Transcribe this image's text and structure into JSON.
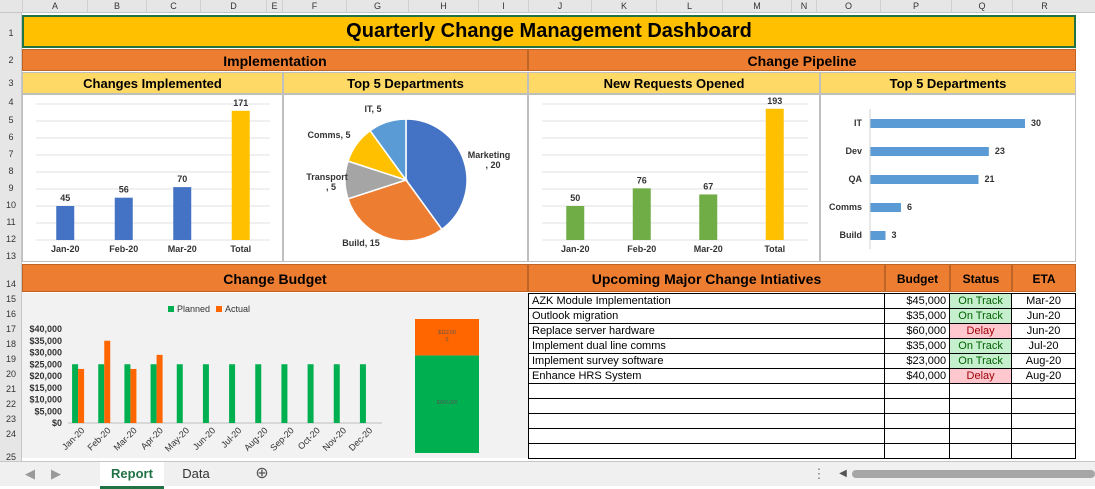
{
  "columns": [
    "A",
    "B",
    "C",
    "D",
    "E",
    "F",
    "G",
    "H",
    "I",
    "J",
    "K",
    "L",
    "M",
    "N",
    "O",
    "P",
    "Q",
    "R"
  ],
  "rows": [
    "1",
    "2",
    "3",
    "4",
    "5",
    "6",
    "7",
    "8",
    "9",
    "10",
    "11",
    "12",
    "13",
    "14",
    "15",
    "16",
    "17",
    "18",
    "19",
    "20",
    "21",
    "22",
    "23",
    "24",
    "25"
  ],
  "dashboard": {
    "title": "Quarterly Change Management Dashboard",
    "implementation_header": "Implementation",
    "pipeline_header": "Change Pipeline",
    "changes_implemented_title": "Changes Implemented",
    "impl_top5_title": "Top 5 Departments",
    "new_requests_title": "New Requests Opened",
    "pipe_top5_title": "Top 5 Departments",
    "budget_header": "Change Budget",
    "initiatives_header": "Upcoming Major Change Intiatives",
    "col_budget": "Budget",
    "col_status": "Status",
    "col_eta": "ETA"
  },
  "initiatives": [
    {
      "name": "AZK Module Implementation",
      "budget": "$45,000",
      "status": "On Track",
      "eta": "Mar-20"
    },
    {
      "name": "Outlook migration",
      "budget": "$35,000",
      "status": "On Track",
      "eta": "Jun-20"
    },
    {
      "name": "Replace server hardware",
      "budget": "$60,000",
      "status": "Delay",
      "eta": "Jun-20"
    },
    {
      "name": "Implement dual line comms",
      "budget": "$35,000",
      "status": "On Track",
      "eta": "Jul-20"
    },
    {
      "name": "Implement survey software",
      "budget": "$23,000",
      "status": "On Track",
      "eta": "Aug-20"
    },
    {
      "name": "Enhance HRS System",
      "budget": "$40,000",
      "status": "Delay",
      "eta": "Aug-20"
    }
  ],
  "status_colors": {
    "on_track_bg": "#c6efce",
    "on_track_fg": "#006100",
    "delay_bg": "#ffc7ce",
    "delay_fg": "#9c0006"
  },
  "sheet_tabs": [
    "Report",
    "Data"
  ],
  "active_tab": "Report",
  "chart_data": [
    {
      "type": "bar",
      "categories": [
        "Jan-20",
        "Feb-20",
        "Mar-20",
        "Total"
      ],
      "values": [
        45,
        56,
        70,
        171
      ],
      "colors": [
        "#4472c4",
        "#4472c4",
        "#4472c4",
        "#ffc000"
      ],
      "title": "Changes Implemented"
    },
    {
      "type": "pie",
      "labels": [
        "Marketing, 20",
        "Build, 15",
        "Transport, 5",
        "Comms, 5",
        "IT, 5"
      ],
      "values": [
        20,
        15,
        5,
        5,
        5
      ],
      "colors": [
        "#4472c4",
        "#ed7d31",
        "#a5a5a5",
        "#ffc000",
        "#5b9bd5"
      ],
      "title": "Top 5 Departments"
    },
    {
      "type": "bar",
      "categories": [
        "Jan-20",
        "Feb-20",
        "Mar-20",
        "Total"
      ],
      "values": [
        50,
        76,
        67,
        193
      ],
      "colors": [
        "#70ad47",
        "#70ad47",
        "#70ad47",
        "#ffc000"
      ],
      "title": "New Requests Opened"
    },
    {
      "type": "bar",
      "orientation": "horizontal",
      "categories": [
        "IT",
        "Dev",
        "QA",
        "Comms",
        "Build"
      ],
      "values": [
        30,
        23,
        21,
        6,
        3
      ],
      "colors": [
        "#5b9bd5"
      ],
      "title": "Top 5 Departments"
    },
    {
      "type": "bar",
      "categories": [
        "Jan-20",
        "Feb-20",
        "Mar-20",
        "Apr-20",
        "May-20",
        "Jun-20",
        "Jul-20",
        "Aug-20",
        "Sep-20",
        "Oct-20",
        "Nov-20",
        "Dec-20"
      ],
      "series": [
        {
          "name": "Planned",
          "values": [
            25000,
            25000,
            25000,
            25000,
            25000,
            25000,
            25000,
            25000,
            25000,
            25000,
            25000,
            25000
          ],
          "color": "#00b050"
        },
        {
          "name": "Actual",
          "values": [
            23000,
            35000,
            23000,
            29000,
            null,
            null,
            null,
            null,
            null,
            null,
            null,
            null
          ],
          "color": "#ff6600"
        }
      ],
      "ylim": [
        0,
        40000
      ],
      "yticks": [
        "$0",
        "$5,000",
        "$10,000",
        "$15,000",
        "$20,000",
        "$25,000",
        "$30,000",
        "$35,000",
        "$40,000"
      ],
      "legend": "top-center"
    },
    {
      "type": "bar",
      "orientation": "stacked",
      "categories": [
        "Budget"
      ],
      "series": [
        {
          "name": "",
          "values": [
            300000
          ],
          "label": "$300,000",
          "color": "#00b050"
        },
        {
          "name": "",
          "values": [
            112000
          ],
          "label": "$112,00 0",
          "color": "#ff6600"
        }
      ]
    }
  ]
}
